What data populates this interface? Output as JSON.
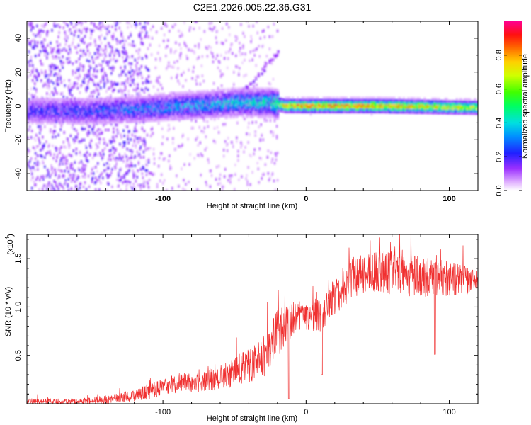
{
  "title": "C2E1.2026.005.22.36.G31",
  "colors": {
    "snr_line": "#f03030",
    "background": "#ffffff",
    "frame": "#000000"
  },
  "chart_data": [
    {
      "type": "heatmap",
      "name": "spectrogram",
      "xlabel": "Height of straight line (km)",
      "ylabel": "Frequency (Hz)",
      "xlim": [
        -195,
        120
      ],
      "ylim": [
        -50,
        50
      ],
      "x_ticks": [
        -100,
        0,
        100
      ],
      "x_tick_labels": [
        "-100",
        "0",
        "100"
      ],
      "y_ticks": [
        -40,
        -20,
        0,
        20,
        40
      ],
      "y_tick_labels": [
        "-40",
        "-20",
        "0",
        "20",
        "40"
      ],
      "colorbar": {
        "label": "Normalized spectral amplitude",
        "range": [
          0,
          1
        ],
        "ticks": [
          0,
          0.2,
          0.4,
          0.6,
          0.8
        ],
        "tick_labels": [
          "0.0",
          "0.2",
          "0.4",
          "0.6",
          "0.8"
        ]
      },
      "ridge": {
        "description_points": [
          {
            "x": -195,
            "freq": -3,
            "amp": 0.25
          },
          {
            "x": -150,
            "freq": -3,
            "amp": 0.3
          },
          {
            "x": -120,
            "freq": -2,
            "amp": 0.35
          },
          {
            "x": -80,
            "freq": 0,
            "amp": 0.4
          },
          {
            "x": -50,
            "freq": 2,
            "amp": 0.45
          },
          {
            "x": -25,
            "freq": 2,
            "amp": 0.5
          },
          {
            "x": -15,
            "freq": 0,
            "amp": 0.85
          },
          {
            "x": 0,
            "freq": 0,
            "amp": 0.9
          },
          {
            "x": 50,
            "freq": 0,
            "amp": 0.9
          },
          {
            "x": 120,
            "freq": -1,
            "amp": 0.75
          }
        ]
      }
    },
    {
      "type": "line",
      "name": "snr",
      "xlabel": "Height of straight line (km)",
      "ylabel": "SNR (10 * v/v)",
      "y_multiplier_label": "(x10",
      "y_multiplier_exp": "4",
      "xlim": [
        -195,
        120
      ],
      "ylim": [
        0,
        1.75
      ],
      "x_ticks": [
        -100,
        0,
        100
      ],
      "x_tick_labels": [
        "-100",
        "0",
        "100"
      ],
      "y_ticks": [
        0.5,
        1.0,
        1.5
      ],
      "y_tick_labels": [
        "0.5",
        "1.0",
        "1.5"
      ],
      "series": [
        {
          "name": "SNR",
          "envelope": [
            {
              "x": -195,
              "mean": 0.02,
              "spread": 0.03
            },
            {
              "x": -160,
              "mean": 0.02,
              "spread": 0.03
            },
            {
              "x": -130,
              "mean": 0.05,
              "spread": 0.05
            },
            {
              "x": -110,
              "mean": 0.12,
              "spread": 0.08
            },
            {
              "x": -90,
              "mean": 0.2,
              "spread": 0.1
            },
            {
              "x": -70,
              "mean": 0.22,
              "spread": 0.1
            },
            {
              "x": -55,
              "mean": 0.28,
              "spread": 0.14
            },
            {
              "x": -40,
              "mean": 0.38,
              "spread": 0.18
            },
            {
              "x": -30,
              "mean": 0.45,
              "spread": 0.2
            },
            {
              "x": -20,
              "mean": 0.7,
              "spread": 0.25
            },
            {
              "x": -10,
              "mean": 0.85,
              "spread": 0.18
            },
            {
              "x": 0,
              "mean": 0.9,
              "spread": 0.15
            },
            {
              "x": 10,
              "mean": 0.9,
              "spread": 0.18
            },
            {
              "x": 20,
              "mean": 1.1,
              "spread": 0.2
            },
            {
              "x": 35,
              "mean": 1.3,
              "spread": 0.22
            },
            {
              "x": 50,
              "mean": 1.35,
              "spread": 0.22
            },
            {
              "x": 75,
              "mean": 1.3,
              "spread": 0.22
            },
            {
              "x": 100,
              "mean": 1.28,
              "spread": 0.18
            },
            {
              "x": 120,
              "mean": 1.25,
              "spread": 0.12
            }
          ],
          "dips": [
            {
              "x": -12,
              "value": 0.05
            },
            {
              "x": 11,
              "value": 0.3
            },
            {
              "x": 90,
              "value": 0.51
            }
          ]
        }
      ]
    }
  ]
}
